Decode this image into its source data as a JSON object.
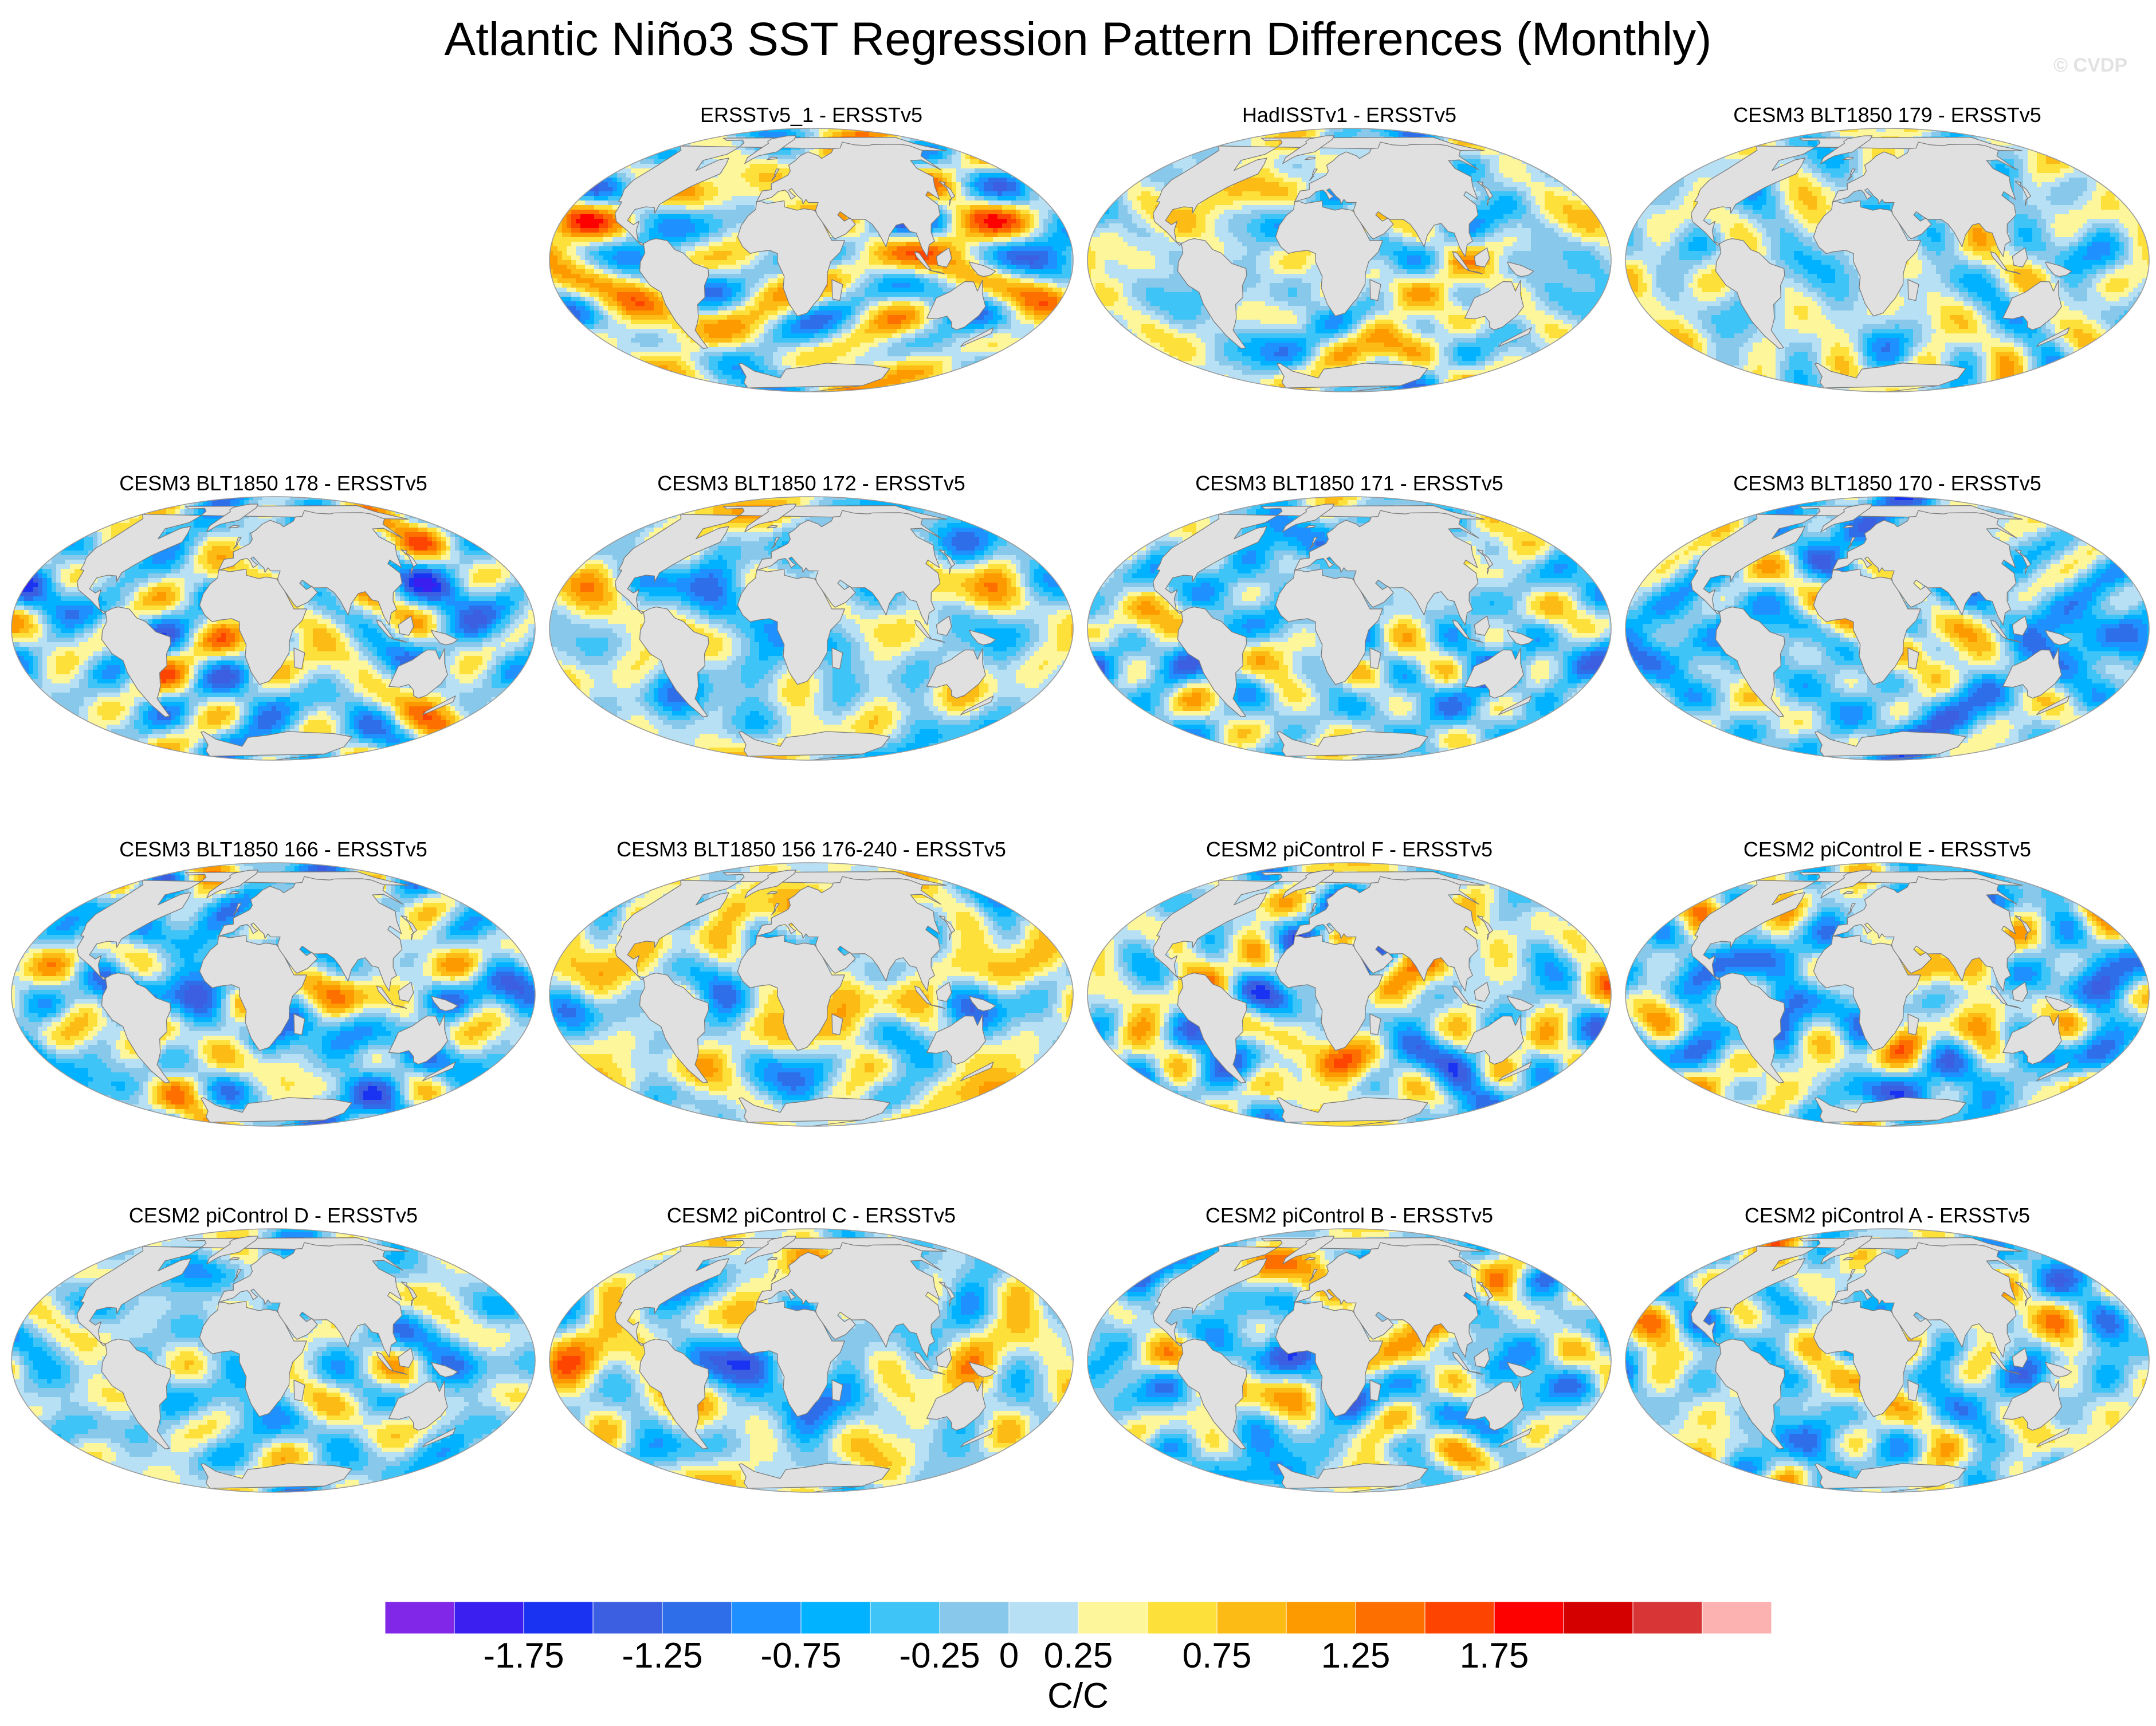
{
  "title": "Atlantic Niño3 SST Regression Pattern Differences (Monthly)",
  "watermark": "© CVDP",
  "panels": [
    {
      "label": "ERSSTv5_1 - ERSSTv5",
      "seed": 11,
      "bias": 0.25
    },
    {
      "label": "HadISSTv1 - ERSSTv5",
      "seed": 23,
      "bias": 0.15
    },
    {
      "label": "CESM3 BLT1850 179 - ERSSTv5",
      "seed": 37,
      "bias": 0.1
    },
    {
      "label": "CESM3 BLT1850 178 - ERSSTv5",
      "seed": 41,
      "bias": 0.05
    },
    {
      "label": "CESM3 BLT1850 172 - ERSSTv5",
      "seed": 53,
      "bias": 0.0
    },
    {
      "label": "CESM3 BLT1850 171 - ERSSTv5",
      "seed": 67,
      "bias": -0.15
    },
    {
      "label": "CESM3 BLT1850 170 - ERSSTv5",
      "seed": 71,
      "bias": -0.2
    },
    {
      "label": "CESM3 BLT1850 166 - ERSSTv5",
      "seed": 83,
      "bias": -0.15
    },
    {
      "label": "CESM3 BLT1850 156 176-240 - ERSSTv5",
      "seed": 97,
      "bias": 0.2
    },
    {
      "label": "CESM2 piControl F - ERSSTv5",
      "seed": 101,
      "bias": 0.0
    },
    {
      "label": "CESM2 piControl E - ERSSTv5",
      "seed": 113,
      "bias": -0.1
    },
    {
      "label": "CESM2 piControl D - ERSSTv5",
      "seed": 127,
      "bias": -0.05
    },
    {
      "label": "CESM2 piControl C - ERSSTv5",
      "seed": 131,
      "bias": 0.05
    },
    {
      "label": "CESM2 piControl B - ERSSTv5",
      "seed": 139,
      "bias": -0.05
    },
    {
      "label": "CESM2 piControl A - ERSSTv5",
      "seed": 149,
      "bias": 0.0
    }
  ],
  "colorbar": {
    "levels": [
      -2,
      -1.75,
      -1.5,
      -1.25,
      -1,
      -0.75,
      -0.5,
      -0.25,
      0,
      0.25,
      0.5,
      0.75,
      1,
      1.25,
      1.5,
      1.75,
      2
    ],
    "colors": [
      "#8127e8",
      "#3b1ff0",
      "#1a33f2",
      "#3b5fe0",
      "#2e6ee8",
      "#1e90ff",
      "#00b2ff",
      "#3ec4f7",
      "#88c8ea",
      "#b8e0f4",
      "#fdf69a",
      "#fde03a",
      "#fdbb16",
      "#fd9a00",
      "#fd7000",
      "#fd4400",
      "#fd0000",
      "#d40000",
      "#d83636",
      "#fdb2b2"
    ],
    "tick_labels": [
      "-1.75",
      "-1.25",
      "-0.75",
      "-0.25",
      "0",
      "0.25",
      "0.75",
      "1.25",
      "1.75"
    ],
    "units": "C/C"
  },
  "land_color": "#e0e0e0",
  "coast_color": "#7a7a7a"
}
